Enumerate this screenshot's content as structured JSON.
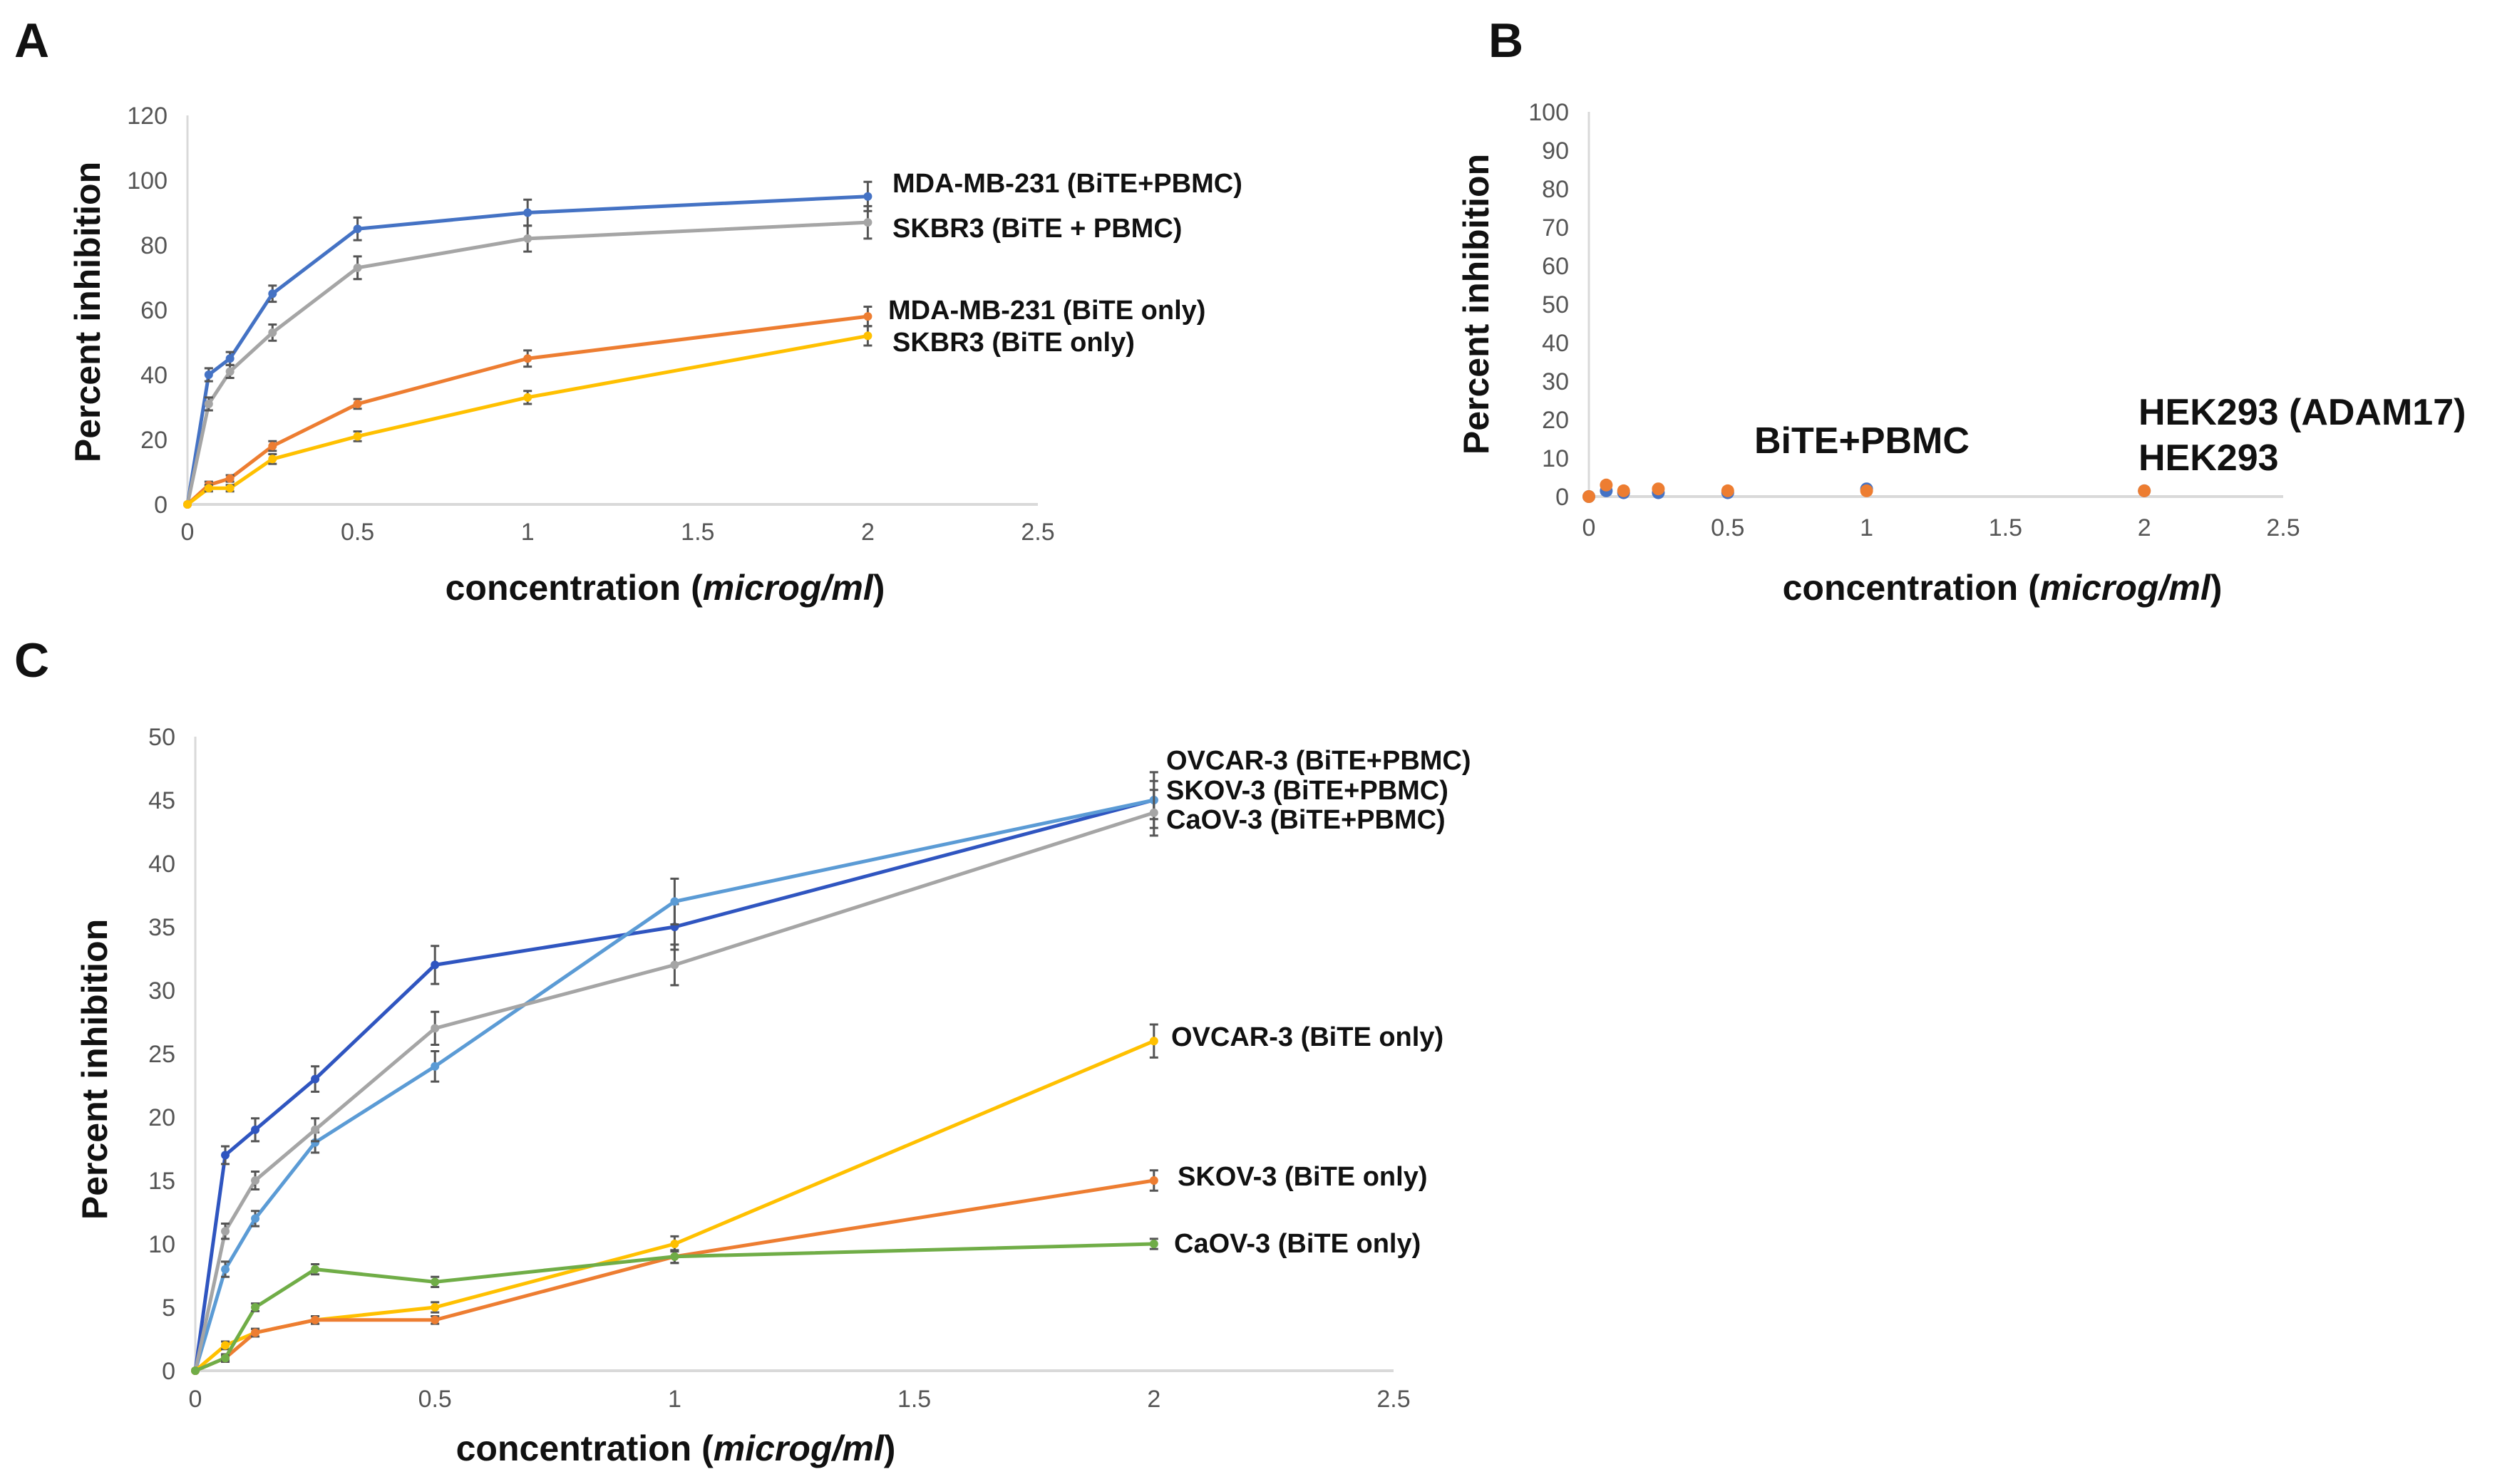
{
  "chart_data": [
    {
      "panel": "A",
      "type": "line",
      "xlabel": {
        "prefix": "concentration (",
        "italic": "microg/ml",
        "suffix": ")"
      },
      "ylabel": "Percent inhibition",
      "xlim": [
        0,
        2.5
      ],
      "ylim": [
        0,
        120
      ],
      "xticks": [
        "0",
        "0.5",
        "1",
        "1.5",
        "2",
        "2.5"
      ],
      "yticks": [
        "0",
        "20",
        "40",
        "60",
        "80",
        "100",
        "120"
      ],
      "x": [
        0,
        0.0625,
        0.125,
        0.25,
        0.5,
        1,
        2
      ],
      "series": [
        {
          "name": "MDA-MB-231 (BiTE+PBMC)",
          "color": "#4472C4",
          "values": [
            0,
            40,
            45,
            65,
            85,
            90,
            95
          ],
          "errors": [
            0,
            2,
            2,
            2.5,
            3.5,
            4,
            4.5
          ]
        },
        {
          "name": "SKBR3 (BiTE + PBMC)",
          "color": "#A5A5A5",
          "values": [
            0,
            31,
            41,
            53,
            73,
            82,
            87
          ],
          "errors": [
            0,
            2,
            2,
            2.5,
            3.5,
            4,
            5
          ]
        },
        {
          "name": "MDA-MB-231 (BiTE only)",
          "color": "#ED7D31",
          "values": [
            0,
            6,
            8,
            18,
            31,
            45,
            58
          ],
          "errors": [
            0,
            1,
            1,
            1.5,
            1.5,
            2.5,
            3
          ]
        },
        {
          "name": "SKBR3 (BiTE only)",
          "color": "#FFC000",
          "values": [
            0,
            5,
            5,
            14,
            21,
            33,
            52
          ],
          "errors": [
            0,
            1,
            1,
            1.5,
            1.5,
            2,
            3
          ]
        }
      ]
    },
    {
      "panel": "B",
      "type": "scatter",
      "xlabel": {
        "prefix": "concentration (",
        "italic": "microg/ml",
        "suffix": ")"
      },
      "ylabel": "Percent inhibition",
      "xlim": [
        0,
        2.5
      ],
      "ylim": [
        0,
        100
      ],
      "xticks": [
        "0",
        "0.5",
        "1",
        "1.5",
        "2",
        "2.5"
      ],
      "yticks": [
        "0",
        "10",
        "20",
        "30",
        "40",
        "50",
        "60",
        "70",
        "80",
        "90",
        "100"
      ],
      "x": [
        0,
        0.0625,
        0.125,
        0.25,
        0.5,
        1,
        2
      ],
      "annotations": [
        "BiTE+PBMC",
        "HEK293 (ADAM17)",
        "HEK293"
      ],
      "series": [
        {
          "name": "HEK293",
          "color": "#4472C4",
          "values": [
            0,
            1.5,
            1,
            1,
            1,
            2,
            1.5
          ]
        },
        {
          "name": "HEK293 (ADAM17)",
          "color": "#ED7D31",
          "values": [
            0,
            3,
            1.5,
            2,
            1.5,
            1.5,
            1.5
          ]
        }
      ]
    },
    {
      "panel": "C",
      "type": "line",
      "xlabel": {
        "prefix": "concentration (",
        "italic": "microg/ml",
        "suffix": ")"
      },
      "ylabel": "Percent inhibition",
      "xlim": [
        0,
        2.5
      ],
      "ylim": [
        0,
        50
      ],
      "xticks": [
        "0",
        "0.5",
        "1",
        "1.5",
        "2",
        "2.5"
      ],
      "yticks": [
        "0",
        "5",
        "10",
        "15",
        "20",
        "25",
        "30",
        "35",
        "40",
        "45",
        "50"
      ],
      "x": [
        0,
        0.0625,
        0.125,
        0.25,
        0.5,
        1,
        2
      ],
      "series": [
        {
          "name": "OVCAR-3 (BiTE+PBMC)",
          "color": "#2F55C0",
          "values": [
            0,
            17,
            19,
            23,
            32,
            35,
            45
          ],
          "errors": [
            0,
            0.7,
            0.9,
            1,
            1.5,
            1.8,
            2.2
          ]
        },
        {
          "name": "SKOV-3 (BiTE+PBMC)",
          "color": "#5B9BD5",
          "values": [
            0,
            8,
            12,
            18,
            24,
            37,
            45
          ],
          "errors": [
            0,
            0.6,
            0.6,
            0.8,
            1.2,
            1.8,
            1.5
          ]
        },
        {
          "name": "CaOV-3 (BiTE+PBMC)",
          "color": "#A5A5A5",
          "values": [
            0,
            11,
            15,
            19,
            27,
            32,
            44
          ],
          "errors": [
            0,
            0.6,
            0.7,
            0.9,
            1.3,
            1.6,
            1.8
          ]
        },
        {
          "name": "OVCAR-3  (BiTE only)",
          "color": "#FFC000",
          "values": [
            0,
            2,
            3,
            4,
            5,
            10,
            26
          ],
          "errors": [
            0,
            0.3,
            0.3,
            0.3,
            0.4,
            0.6,
            1.3
          ]
        },
        {
          "name": "SKOV-3  (BiTE only)",
          "color": "#ED7D31",
          "values": [
            0,
            1,
            3,
            4,
            4,
            9,
            15
          ],
          "errors": [
            0,
            0.3,
            0.3,
            0.3,
            0.3,
            0.5,
            0.8
          ]
        },
        {
          "name": "CaOV-3  (BiTE only)",
          "color": "#70AD47",
          "values": [
            0,
            1,
            5,
            8,
            7,
            9,
            10
          ],
          "errors": [
            0,
            0.2,
            0.3,
            0.4,
            0.4,
            0.5,
            0.4
          ]
        }
      ]
    }
  ]
}
